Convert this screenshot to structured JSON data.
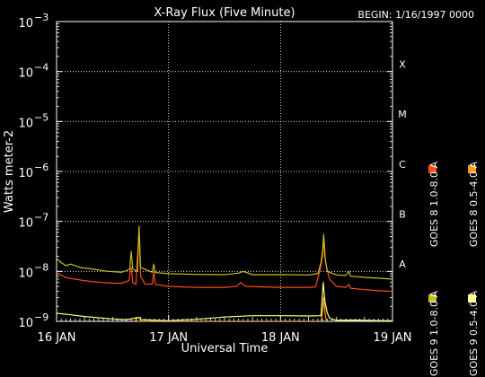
{
  "chart_data": {
    "type": "line",
    "title": "X-Ray Flux (Five Minute)",
    "begin_label": "BEGIN: 1/16/1997 0000",
    "xlabel": "Universal Time",
    "ylabel": "Watts meter-2",
    "y_scale": "log",
    "ylim": [
      1e-09,
      0.001
    ],
    "xlim": [
      "1997-01-16T00:00",
      "1997-01-19T00:00"
    ],
    "x_ticks": [
      {
        "value": "1997-01-16",
        "label": "16 JAN"
      },
      {
        "value": "1997-01-17",
        "label": "17 JAN"
      },
      {
        "value": "1997-01-18",
        "label": "18 JAN"
      },
      {
        "value": "1997-01-19",
        "label": "19 JAN"
      }
    ],
    "y_ticks": [
      {
        "value": 1e-09,
        "mant": "10",
        "exp": "−9"
      },
      {
        "value": 1e-08,
        "mant": "10",
        "exp": "−8"
      },
      {
        "value": 1e-07,
        "mant": "10",
        "exp": "−7"
      },
      {
        "value": 1e-06,
        "mant": "10",
        "exp": "−6"
      },
      {
        "value": 1e-05,
        "mant": "10",
        "exp": "−5"
      },
      {
        "value": 0.0001,
        "mant": "10",
        "exp": "−4"
      },
      {
        "value": 0.001,
        "mant": "10",
        "exp": "−3"
      }
    ],
    "flare_classes": [
      {
        "label": "A",
        "value": 1e-08
      },
      {
        "label": "B",
        "value": 1e-07
      },
      {
        "label": "C",
        "value": 1e-06
      },
      {
        "label": "M",
        "value": 1e-05
      },
      {
        "label": "X",
        "value": 0.0001
      }
    ],
    "grid": "dotted, at 1e-8 through 1e-4 and at day boundaries",
    "legend_placement": "right, vertical",
    "series": [
      {
        "name": "GOES 8 1.0-8.0 A",
        "color": "#ff4a1a",
        "points": [
          [
            "1997-01-16T00:00",
            9.5e-09
          ],
          [
            "1997-01-16T02:00",
            7.5e-09
          ],
          [
            "1997-01-16T04:00",
            7e-09
          ],
          [
            "1997-01-16T06:00",
            6.5e-09
          ],
          [
            "1997-01-16T08:00",
            6.2e-09
          ],
          [
            "1997-01-16T10:00",
            6e-09
          ],
          [
            "1997-01-16T12:00",
            5.8e-09
          ],
          [
            "1997-01-16T14:00",
            5.8e-09
          ],
          [
            "1997-01-16T15:30",
            6.5e-09
          ],
          [
            "1997-01-16T16:00",
            1.2e-08
          ],
          [
            "1997-01-16T16:20",
            6e-09
          ],
          [
            "1997-01-16T17:00",
            5.5e-09
          ],
          [
            "1997-01-16T17:40",
            7e-08
          ],
          [
            "1997-01-16T18:00",
            8e-09
          ],
          [
            "1997-01-16T19:00",
            5.5e-09
          ],
          [
            "1997-01-16T20:30",
            5.6e-09
          ],
          [
            "1997-01-16T20:50",
            1e-08
          ],
          [
            "1997-01-16T21:10",
            5.5e-09
          ],
          [
            "1997-01-17T00:00",
            5e-09
          ],
          [
            "1997-01-17T06:00",
            4.8e-09
          ],
          [
            "1997-01-17T12:00",
            4.8e-09
          ],
          [
            "1997-01-17T14:30",
            5e-09
          ],
          [
            "1997-01-17T15:30",
            6e-09
          ],
          [
            "1997-01-17T16:30",
            5e-09
          ],
          [
            "1997-01-18T00:00",
            4.8e-09
          ],
          [
            "1997-01-18T06:00",
            4.8e-09
          ],
          [
            "1997-01-18T07:30",
            4.9e-09
          ],
          [
            "1997-01-18T08:30",
            1.1e-08
          ],
          [
            "1997-01-18T09:00",
            2e-08
          ],
          [
            "1997-01-18T09:20",
            4.5e-08
          ],
          [
            "1997-01-18T09:40",
            1.5e-08
          ],
          [
            "1997-01-18T10:30",
            7e-09
          ],
          [
            "1997-01-18T12:00",
            5e-09
          ],
          [
            "1997-01-18T14:00",
            4.8e-09
          ],
          [
            "1997-01-18T14:40",
            5.5e-09
          ],
          [
            "1997-01-18T15:00",
            4.6e-09
          ],
          [
            "1997-01-18T18:00",
            4.3e-09
          ],
          [
            "1997-01-18T21:00",
            4.1e-09
          ],
          [
            "1997-01-19T00:00",
            4e-09
          ]
        ]
      },
      {
        "name": "GOES 8 0.5-4.0 A",
        "color": "#ff9a1a",
        "points": [
          [
            "1997-01-16T16:55",
            1e-09
          ],
          [
            "1997-01-16T17:05",
            1.2e-09
          ],
          [
            "1997-01-16T17:10",
            1e-09
          ],
          [
            "1997-01-18T08:40",
            1e-09
          ],
          [
            "1997-01-18T09:00",
            1.5e-09
          ],
          [
            "1997-01-18T09:15",
            3e-09
          ],
          [
            "1997-01-18T09:25",
            2e-09
          ],
          [
            "1997-01-18T09:40",
            1.2e-09
          ],
          [
            "1997-01-18T09:55",
            1e-09
          ]
        ]
      },
      {
        "name": "GOES 9 1.0-8.0 A",
        "color": "#c8c01a",
        "points": [
          [
            "1997-01-16T00:00",
            1.8e-08
          ],
          [
            "1997-01-16T01:00",
            1.5e-08
          ],
          [
            "1997-01-16T02:00",
            1.3e-08
          ],
          [
            "1997-01-16T03:00",
            1.4e-08
          ],
          [
            "1997-01-16T05:00",
            1.2e-08
          ],
          [
            "1997-01-16T08:00",
            1.1e-08
          ],
          [
            "1997-01-16T11:00",
            1e-08
          ],
          [
            "1997-01-16T14:00",
            9.6e-09
          ],
          [
            "1997-01-16T15:40",
            1.1e-08
          ],
          [
            "1997-01-16T16:00",
            2.5e-08
          ],
          [
            "1997-01-16T16:20",
            1.1e-08
          ],
          [
            "1997-01-16T17:20",
            1e-08
          ],
          [
            "1997-01-16T17:40",
            8e-08
          ],
          [
            "1997-01-16T18:00",
            1.2e-08
          ],
          [
            "1997-01-16T20:30",
            9.6e-09
          ],
          [
            "1997-01-16T20:50",
            1.4e-08
          ],
          [
            "1997-01-16T21:10",
            9.5e-09
          ],
          [
            "1997-01-17T00:00",
            9e-09
          ],
          [
            "1997-01-17T06:00",
            8.7e-09
          ],
          [
            "1997-01-17T12:00",
            8.6e-09
          ],
          [
            "1997-01-17T15:00",
            9.2e-09
          ],
          [
            "1997-01-17T16:00",
            1e-08
          ],
          [
            "1997-01-17T18:00",
            8.6e-09
          ],
          [
            "1997-01-18T00:00",
            8.6e-09
          ],
          [
            "1997-01-18T06:00",
            8.5e-09
          ],
          [
            "1997-01-18T08:00",
            9e-09
          ],
          [
            "1997-01-18T08:40",
            1.5e-08
          ],
          [
            "1997-01-18T09:00",
            2.5e-08
          ],
          [
            "1997-01-18T09:15",
            5.5e-08
          ],
          [
            "1997-01-18T09:30",
            2e-08
          ],
          [
            "1997-01-18T10:00",
            1e-08
          ],
          [
            "1997-01-18T12:00",
            8.5e-09
          ],
          [
            "1997-01-18T14:00",
            8.3e-09
          ],
          [
            "1997-01-18T14:40",
            1e-08
          ],
          [
            "1997-01-18T15:00",
            8e-09
          ],
          [
            "1997-01-18T18:00",
            7.6e-09
          ],
          [
            "1997-01-18T21:00",
            7.3e-09
          ],
          [
            "1997-01-19T00:00",
            7e-09
          ]
        ]
      },
      {
        "name": "GOES 9 0.5-4.0 A",
        "color": "#ffff80",
        "points": [
          [
            "1997-01-16T00:00",
            1.45e-09
          ],
          [
            "1997-01-16T03:00",
            1.35e-09
          ],
          [
            "1997-01-16T06:00",
            1.25e-09
          ],
          [
            "1997-01-16T09:00",
            1.18e-09
          ],
          [
            "1997-01-16T12:00",
            1.12e-09
          ],
          [
            "1997-01-16T15:00",
            1.08e-09
          ],
          [
            "1997-01-16T17:40",
            1.2e-09
          ],
          [
            "1997-01-16T18:00",
            1.08e-09
          ],
          [
            "1997-01-17T00:00",
            1.03e-09
          ],
          [
            "1997-01-17T06:00",
            1.1e-09
          ],
          [
            "1997-01-17T12:00",
            1.22e-09
          ],
          [
            "1997-01-17T18:00",
            1.3e-09
          ],
          [
            "1997-01-18T00:00",
            1.3e-09
          ],
          [
            "1997-01-18T06:00",
            1.28e-09
          ],
          [
            "1997-01-18T08:40",
            1.3e-09
          ],
          [
            "1997-01-18T09:10",
            6e-09
          ],
          [
            "1997-01-18T09:30",
            2.5e-09
          ],
          [
            "1997-01-18T10:00",
            1.5e-09
          ],
          [
            "1997-01-18T10:30",
            1.15e-09
          ],
          [
            "1997-01-18T12:00",
            1.05e-09
          ],
          [
            "1997-01-18T16:00",
            1.06e-09
          ],
          [
            "1997-01-18T20:00",
            1.04e-09
          ],
          [
            "1997-01-19T00:00",
            1.03e-09
          ]
        ]
      }
    ]
  }
}
